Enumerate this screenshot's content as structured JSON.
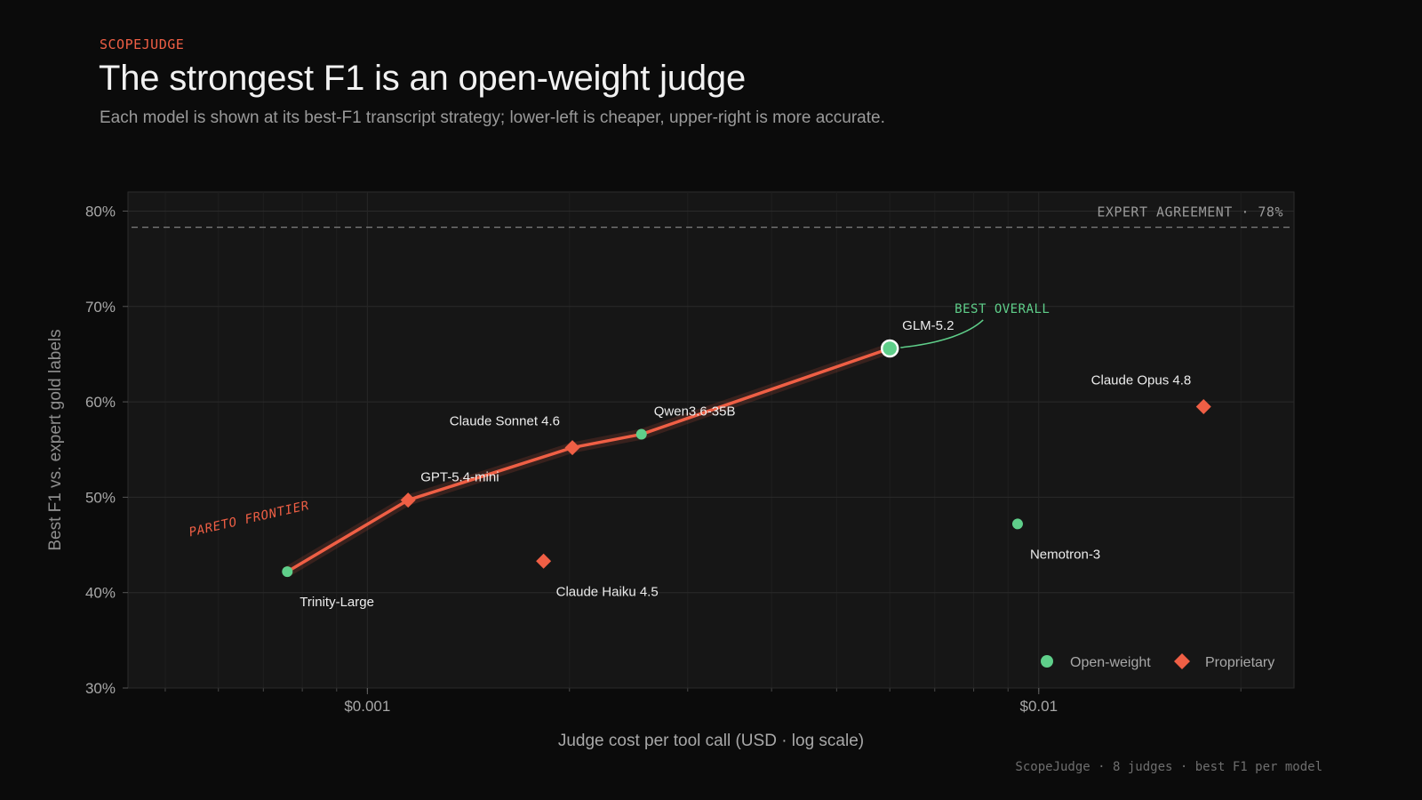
{
  "header": {
    "eyebrow": "SCOPEJUDGE",
    "title": "The strongest F1 is an open-weight judge",
    "subtitle": "Each model is shown at its best-F1 transcript strategy; lower-left is cheaper, upper-right is more accurate."
  },
  "footer": "ScopeJudge · 8 judges · best F1 per model",
  "colors": {
    "background": "#0b0b0b",
    "plot_background": "#161616",
    "open_weight": "#5fcf8a",
    "proprietary": "#ef5f45",
    "frontier": "#ef5f45",
    "text": "#eaeaea",
    "muted": "#9a9a9a"
  },
  "chart_data": {
    "type": "scatter",
    "xlabel": "Judge cost per tool call (USD · log scale)",
    "ylabel": "Best F1 vs. expert gold labels",
    "x_scale": "log",
    "xlim": [
      0.00044,
      0.024
    ],
    "ylim": [
      30,
      82
    ],
    "x_ticks": [
      {
        "value": 0.001,
        "label": "$0.001"
      },
      {
        "value": 0.01,
        "label": "$0.01"
      }
    ],
    "y_ticks": [
      {
        "value": 30,
        "label": "30%"
      },
      {
        "value": 40,
        "label": "40%"
      },
      {
        "value": 50,
        "label": "50%"
      },
      {
        "value": 60,
        "label": "60%"
      },
      {
        "value": 70,
        "label": "70%"
      },
      {
        "value": 80,
        "label": "80%"
      }
    ],
    "grid": true,
    "legend_position": "bottom-right",
    "legend": [
      {
        "label": "Open-weight",
        "marker": "circle"
      },
      {
        "label": "Proprietary",
        "marker": "diamond"
      }
    ],
    "reference_line": {
      "value": 78.3,
      "label": "EXPERT AGREEMENT · 78%"
    },
    "points": [
      {
        "name": "Trinity-Large",
        "x": 0.00076,
        "y": 42.2,
        "kind": "open",
        "label_pos": "below-right"
      },
      {
        "name": "GPT-5.4-mini",
        "x": 0.00115,
        "y": 49.7,
        "kind": "proprietary",
        "label_pos": "above-right"
      },
      {
        "name": "Claude Haiku 4.5",
        "x": 0.00183,
        "y": 43.3,
        "kind": "proprietary",
        "label_pos": "below-right"
      },
      {
        "name": "Claude Sonnet 4.6",
        "x": 0.00202,
        "y": 55.2,
        "kind": "proprietary",
        "label_pos": "above-left"
      },
      {
        "name": "Qwen3.6-35B",
        "x": 0.00256,
        "y": 56.6,
        "kind": "open",
        "label_pos": "above-right"
      },
      {
        "name": "GLM-5.2",
        "x": 0.006,
        "y": 65.6,
        "kind": "open",
        "label_pos": "above-right",
        "highlight": true
      },
      {
        "name": "Nemotron-3",
        "x": 0.0093,
        "y": 47.2,
        "kind": "open",
        "label_pos": "below-right"
      },
      {
        "name": "Claude Opus 4.8",
        "x": 0.0176,
        "y": 59.5,
        "kind": "proprietary",
        "label_pos": "above-left"
      }
    ],
    "frontier": [
      "Trinity-Large",
      "GPT-5.4-mini",
      "Claude Sonnet 4.6",
      "Qwen3.6-35B",
      "GLM-5.2"
    ],
    "annotations": [
      {
        "text": "PARETO FRONTIER",
        "target": "frontier"
      },
      {
        "text": "BEST OVERALL",
        "target": "GLM-5.2"
      }
    ]
  }
}
